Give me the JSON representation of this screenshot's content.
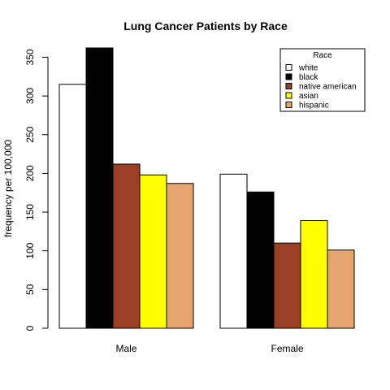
{
  "chart_data": {
    "type": "bar",
    "title": "Lung Cancer Patients by Race",
    "xlabel": "",
    "ylabel": "frequency per 100,000",
    "categories": [
      "Male",
      "Female"
    ],
    "series": [
      {
        "name": "white",
        "values": [
          315,
          199
        ]
      },
      {
        "name": "black",
        "values": [
          362,
          176
        ]
      },
      {
        "name": "native american",
        "values": [
          212,
          110
        ]
      },
      {
        "name": "asian",
        "values": [
          198,
          139
        ]
      },
      {
        "name": "hispanic",
        "values": [
          187,
          101
        ]
      }
    ],
    "colors": [
      "#ffffff",
      "#000000",
      "#9b3f27",
      "#ffff00",
      "#e6a470"
    ],
    "ylim": [
      0,
      362
    ],
    "yticks": [
      0,
      50,
      100,
      150,
      200,
      250,
      300,
      350
    ],
    "legend": {
      "title": "Race",
      "position": "top-right"
    },
    "grid": false
  }
}
